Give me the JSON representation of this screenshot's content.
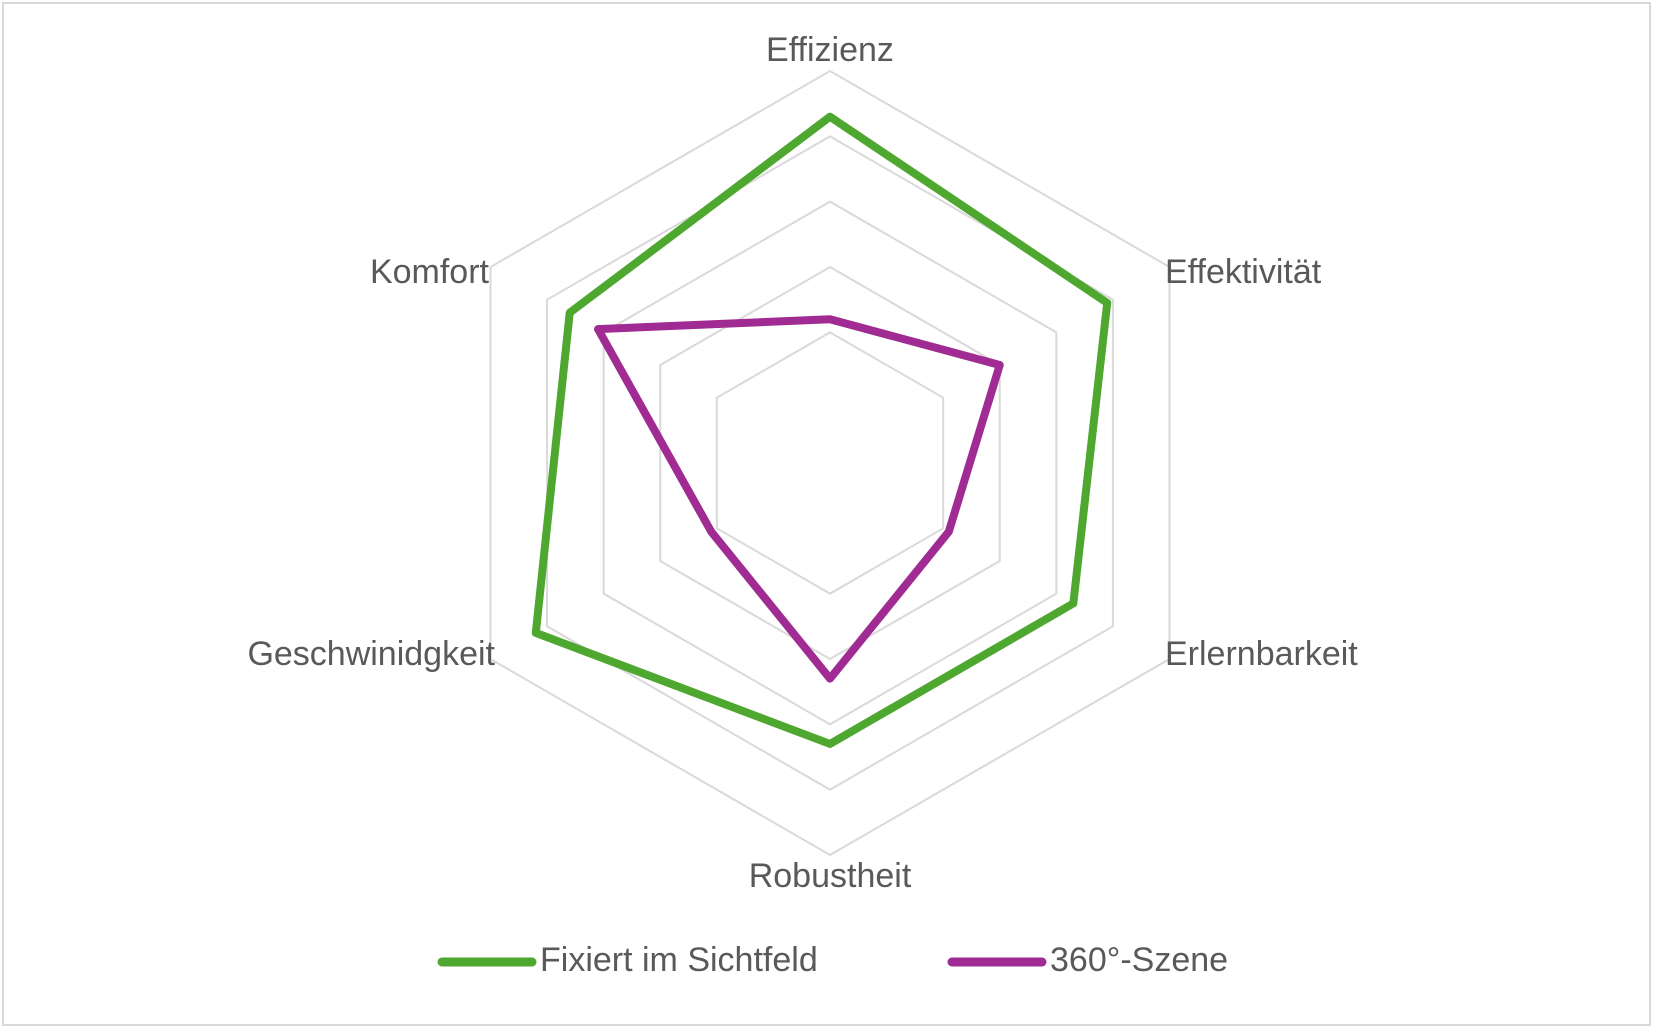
{
  "chart_data": {
    "type": "radar",
    "categories": [
      "Effizienz",
      "Effektivität",
      "Erlernbarkeit",
      "Robustheit",
      "Geschwinidgkeit",
      "Komfort"
    ],
    "series": [
      {
        "name": "Fixiert im Sichtfeld",
        "color": "#4ea72e",
        "values": [
          5.3,
          4.9,
          4.3,
          4.3,
          5.2,
          4.6
        ]
      },
      {
        "name": "360°-Szene",
        "color": "#a02b93",
        "values": [
          2.2,
          3.0,
          2.1,
          3.3,
          2.1,
          4.1
        ]
      }
    ],
    "rlim": [
      0,
      6
    ],
    "rings": 5,
    "grid": true,
    "legend_position": "bottom"
  }
}
